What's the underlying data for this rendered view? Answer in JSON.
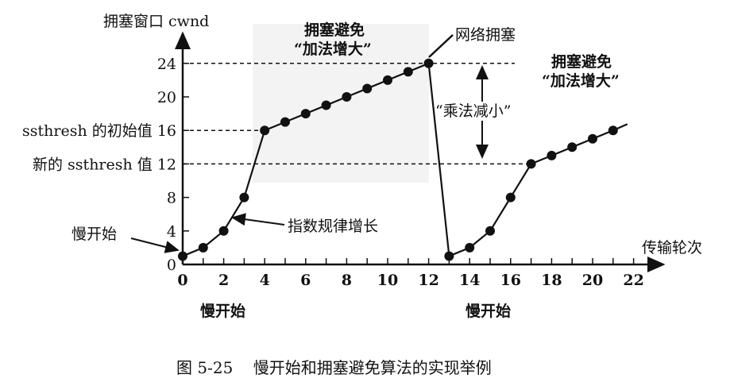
{
  "chart_data": {
    "type": "line",
    "title": "",
    "caption": "图 5-25    慢开始和拥塞避免算法的实现举例",
    "xlabel": "传输轮次",
    "ylabel": "拥塞窗口 cwnd",
    "xlim": [
      0,
      22
    ],
    "ylim": [
      0,
      24
    ],
    "x_ticks": [
      "0",
      "2",
      "4",
      "6",
      "8",
      "10",
      "12",
      "14",
      "16",
      "18",
      "20",
      "22"
    ],
    "y_ticks": [
      "0",
      "4",
      "8",
      "12",
      "16",
      "20",
      "24"
    ],
    "y_tick_labels": {
      "16": "ssthresh 的初始值 16",
      "12": "新的 ssthresh 值 12"
    },
    "grid": false,
    "series": [
      {
        "name": "cwnd",
        "x": [
          0,
          1,
          2,
          3,
          4,
          5,
          6,
          7,
          8,
          9,
          10,
          11,
          12,
          13,
          14,
          15,
          16,
          17,
          18,
          19,
          20,
          21
        ],
        "values": [
          1,
          2,
          4,
          8,
          16,
          17,
          18,
          19,
          20,
          21,
          22,
          23,
          24,
          1,
          2,
          4,
          8,
          12,
          13,
          14,
          15,
          16
        ]
      }
    ],
    "reference_lines": [
      {
        "y": 24,
        "style": "dashed"
      },
      {
        "y": 16,
        "style": "dashed"
      },
      {
        "y": 12,
        "style": "dashed"
      }
    ],
    "annotations": {
      "slow_start_left": "慢开始",
      "exponential": "指数规律增长",
      "ca1_line1": "拥塞避免",
      "ca1_line2": "“加法增大”",
      "congestion": "网络拥塞",
      "mult_decrease": "“乘法减小”",
      "ca2_line1": "拥塞避免",
      "ca2_line2": "“加法增大”",
      "slow_start_bottom1": "慢开始",
      "slow_start_bottom2": "慢开始"
    }
  }
}
